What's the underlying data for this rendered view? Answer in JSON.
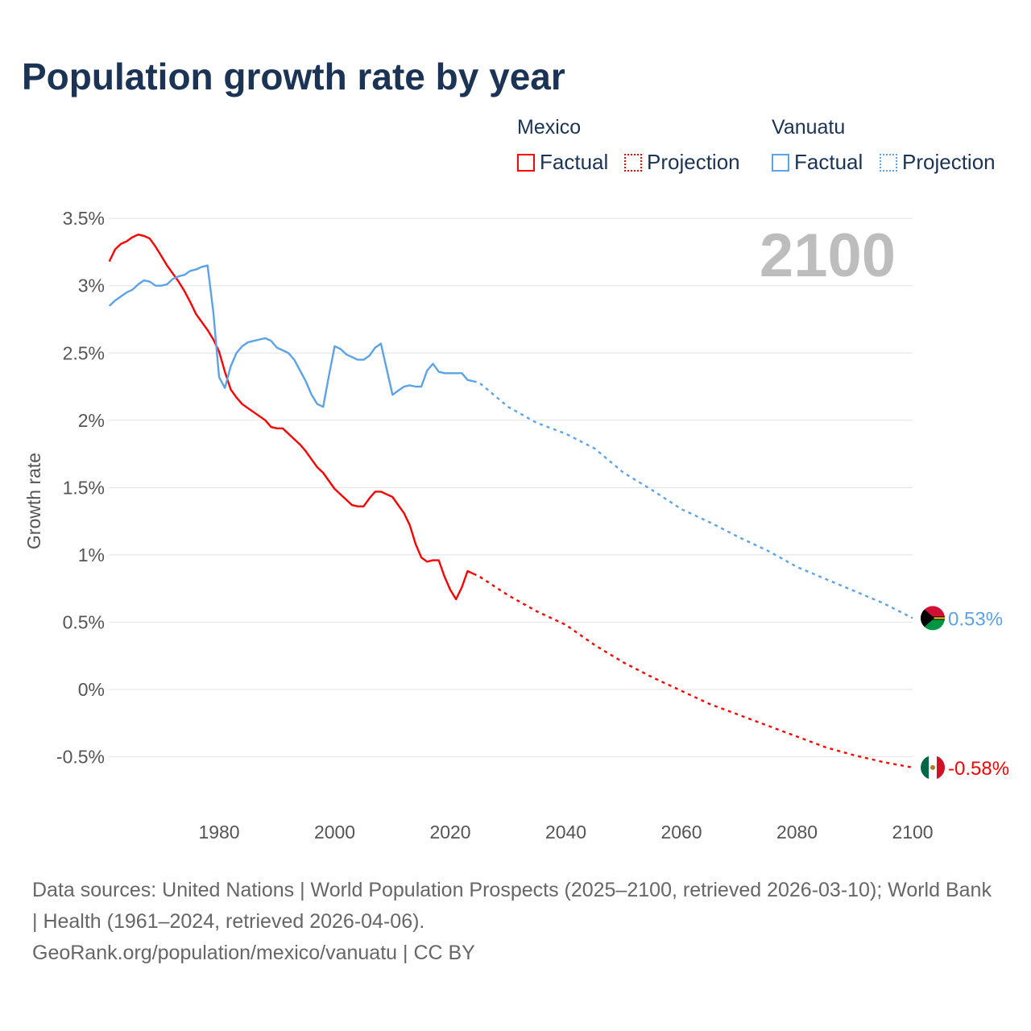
{
  "chart_data": {
    "type": "line",
    "title": "Population growth rate by year",
    "xlabel": "",
    "ylabel": "Growth rate",
    "xlim": [
      1961,
      2100
    ],
    "ylim": [
      -0.75,
      3.6
    ],
    "yticks": [
      {
        "v": 3.5,
        "label": "3.5%"
      },
      {
        "v": 3,
        "label": "3%"
      },
      {
        "v": 2.5,
        "label": "2.5%"
      },
      {
        "v": 2,
        "label": "2%"
      },
      {
        "v": 1.5,
        "label": "1.5%"
      },
      {
        "v": 1,
        "label": "1%"
      },
      {
        "v": 0.5,
        "label": "0.5%"
      },
      {
        "v": 0,
        "label": "0%"
      },
      {
        "v": -0.5,
        "label": "-0.5%"
      }
    ],
    "xticks": [
      {
        "v": 1980,
        "label": "1980"
      },
      {
        "v": 2000,
        "label": "2000"
      },
      {
        "v": 2020,
        "label": "2020"
      },
      {
        "v": 2040,
        "label": "2040"
      },
      {
        "v": 2060,
        "label": "2060"
      },
      {
        "v": 2080,
        "label": "2080"
      },
      {
        "v": 2100,
        "label": "2100"
      }
    ],
    "grid": true,
    "year_display": "2100",
    "legend": {
      "placement": "top-right",
      "groups": [
        {
          "name": "Mexico",
          "factual": "Factual",
          "projection": "Projection"
        },
        {
          "name": "Vanuatu",
          "factual": "Factual",
          "projection": "Projection"
        }
      ]
    },
    "series": [
      {
        "name": "Mexico",
        "color": "#ff0000",
        "end_label": "-0.58%",
        "factual": {
          "x": [
            1961,
            1962,
            1963,
            1964,
            1965,
            1966,
            1967,
            1968,
            1969,
            1970,
            1971,
            1972,
            1973,
            1974,
            1975,
            1976,
            1977,
            1978,
            1979,
            1980,
            1981,
            1982,
            1983,
            1984,
            1985,
            1986,
            1987,
            1988,
            1989,
            1990,
            1991,
            1992,
            1993,
            1994,
            1995,
            1996,
            1997,
            1998,
            1999,
            2000,
            2001,
            2002,
            2003,
            2004,
            2005,
            2006,
            2007,
            2008,
            2009,
            2010,
            2011,
            2012,
            2013,
            2014,
            2015,
            2016,
            2017,
            2018,
            2019,
            2020,
            2021,
            2022,
            2023,
            2024
          ],
          "y": [
            3.18,
            3.27,
            3.31,
            3.33,
            3.36,
            3.38,
            3.37,
            3.35,
            3.29,
            3.22,
            3.15,
            3.09,
            3.03,
            2.96,
            2.88,
            2.79,
            2.73,
            2.67,
            2.6,
            2.51,
            2.36,
            2.23,
            2.17,
            2.12,
            2.09,
            2.06,
            2.03,
            2.0,
            1.95,
            1.94,
            1.94,
            1.9,
            1.86,
            1.82,
            1.77,
            1.71,
            1.65,
            1.61,
            1.55,
            1.49,
            1.45,
            1.41,
            1.37,
            1.36,
            1.36,
            1.42,
            1.47,
            1.47,
            1.45,
            1.43,
            1.37,
            1.31,
            1.22,
            1.08,
            0.98,
            0.95,
            0.96,
            0.96,
            0.84,
            0.74,
            0.67,
            0.76,
            0.88,
            0.86
          ]
        },
        "projection": {
          "x": [
            2024,
            2025,
            2030,
            2035,
            2040,
            2045,
            2050,
            2055,
            2060,
            2065,
            2070,
            2075,
            2080,
            2085,
            2090,
            2095,
            2100
          ],
          "y": [
            0.86,
            0.84,
            0.7,
            0.58,
            0.48,
            0.33,
            0.2,
            0.09,
            -0.01,
            -0.11,
            -0.19,
            -0.27,
            -0.35,
            -0.43,
            -0.49,
            -0.54,
            -0.58
          ]
        }
      },
      {
        "name": "Vanuatu",
        "color": "#5ba3e8",
        "end_label": "0.53%",
        "factual": {
          "x": [
            1961,
            1962,
            1963,
            1964,
            1965,
            1966,
            1967,
            1968,
            1969,
            1970,
            1971,
            1972,
            1973,
            1974,
            1975,
            1976,
            1977,
            1978,
            1979,
            1980,
            1981,
            1982,
            1983,
            1984,
            1985,
            1986,
            1987,
            1988,
            1989,
            1990,
            1991,
            1992,
            1993,
            1994,
            1995,
            1996,
            1997,
            1998,
            1999,
            2000,
            2001,
            2002,
            2003,
            2004,
            2005,
            2006,
            2007,
            2008,
            2009,
            2010,
            2011,
            2012,
            2013,
            2014,
            2015,
            2016,
            2017,
            2018,
            2019,
            2020,
            2021,
            2022,
            2023,
            2024
          ],
          "y": [
            2.85,
            2.89,
            2.92,
            2.95,
            2.97,
            3.01,
            3.04,
            3.03,
            3.0,
            3.0,
            3.01,
            3.05,
            3.07,
            3.08,
            3.11,
            3.12,
            3.14,
            3.15,
            2.8,
            2.32,
            2.24,
            2.4,
            2.5,
            2.55,
            2.58,
            2.59,
            2.6,
            2.61,
            2.59,
            2.54,
            2.52,
            2.5,
            2.45,
            2.37,
            2.29,
            2.19,
            2.12,
            2.1,
            2.33,
            2.55,
            2.53,
            2.49,
            2.47,
            2.45,
            2.45,
            2.48,
            2.54,
            2.57,
            2.38,
            2.19,
            2.22,
            2.25,
            2.26,
            2.25,
            2.25,
            2.37,
            2.42,
            2.36,
            2.35,
            2.35,
            2.35,
            2.35,
            2.3,
            2.29
          ]
        },
        "projection": {
          "x": [
            2024,
            2025,
            2030,
            2035,
            2040,
            2045,
            2050,
            2055,
            2060,
            2065,
            2070,
            2075,
            2080,
            2085,
            2090,
            2095,
            2100
          ],
          "y": [
            2.29,
            2.28,
            2.1,
            1.98,
            1.9,
            1.79,
            1.61,
            1.48,
            1.34,
            1.24,
            1.13,
            1.03,
            0.91,
            0.82,
            0.73,
            0.64,
            0.53
          ]
        }
      }
    ]
  },
  "footer": {
    "sources": "Data sources: United Nations | World Population Prospects (2025–2100, retrieved 2026-03-10); World Bank | Health (1961–2024, retrieved 2026-04-06).",
    "credit": "GeoRank.org/population/mexico/vanuatu | CC BY"
  }
}
